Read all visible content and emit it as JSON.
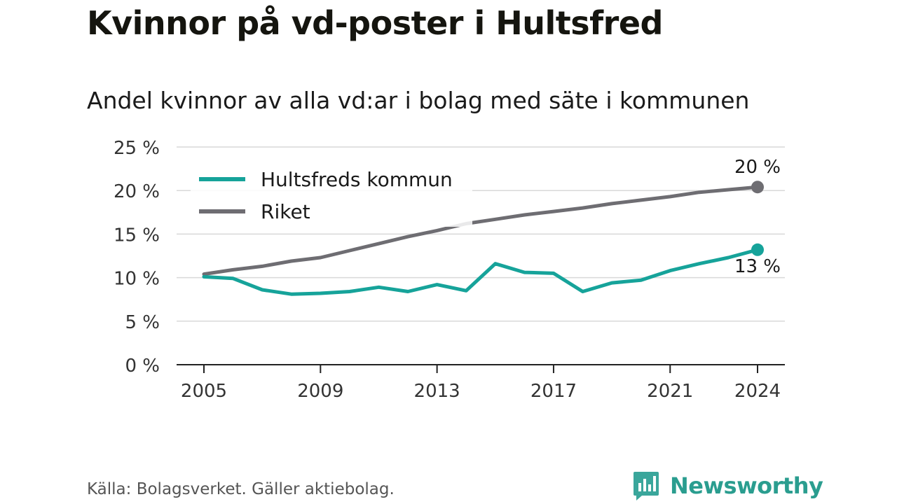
{
  "title": "Kvinnor på vd-poster i Hultsfred",
  "subtitle": "Andel kvinnor av alla vd:ar i bolag med säte i kommunen",
  "source": "Källa: Bolagsverket. Gäller aktiebolag.",
  "brand": {
    "name": "Newsworthy",
    "icon": "newsworthy-logo-icon",
    "color": "#3aa69b"
  },
  "chart_data": {
    "type": "line",
    "x": [
      2005,
      2006,
      2007,
      2008,
      2009,
      2010,
      2011,
      2012,
      2013,
      2014,
      2015,
      2016,
      2017,
      2018,
      2019,
      2020,
      2021,
      2022,
      2023,
      2024
    ],
    "series": [
      {
        "name": "Hultsfreds kommun",
        "color": "#16a39a",
        "values": [
          10.1,
          9.9,
          8.6,
          8.1,
          8.2,
          8.4,
          8.9,
          8.4,
          9.2,
          8.5,
          11.6,
          10.6,
          10.5,
          8.4,
          9.4,
          9.7,
          10.8,
          11.6,
          12.3,
          13.2
        ],
        "end_label": "13 %"
      },
      {
        "name": "Riket",
        "color": "#6e6d72",
        "values": [
          10.4,
          10.9,
          11.3,
          11.9,
          12.3,
          13.1,
          13.9,
          14.7,
          15.4,
          16.2,
          16.7,
          17.2,
          17.6,
          18.0,
          18.5,
          18.9,
          19.3,
          19.8,
          20.1,
          20.4
        ],
        "end_label": "20 %"
      }
    ],
    "x_ticks": [
      2005,
      2009,
      2013,
      2017,
      2021,
      2024
    ],
    "x_tick_labels": [
      "2005",
      "2009",
      "2013",
      "2017",
      "2021",
      "2024"
    ],
    "y_ticks": [
      0,
      5,
      10,
      15,
      20,
      25
    ],
    "y_tick_labels": [
      "0 %",
      "5 %",
      "10 %",
      "15 %",
      "20 %",
      "25 %"
    ],
    "ylim": [
      0,
      25
    ],
    "xlim": [
      2005,
      2024
    ],
    "grid": true,
    "legend_position": "top-left"
  }
}
